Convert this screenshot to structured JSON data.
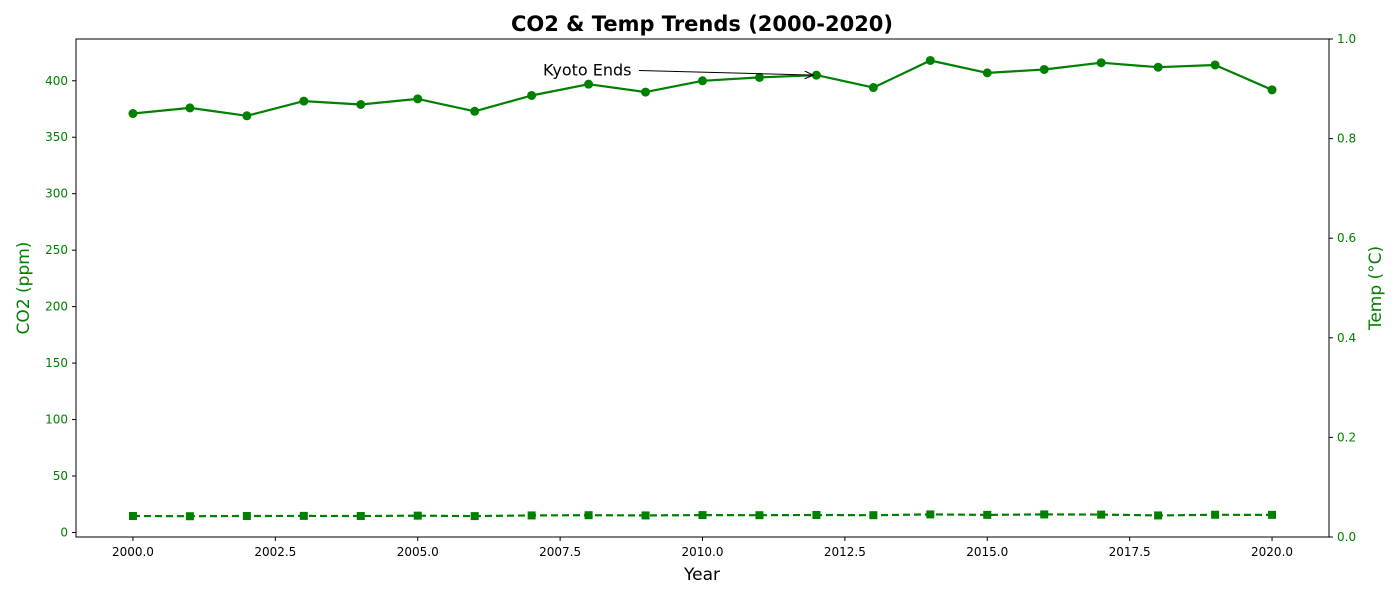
{
  "chart_data": {
    "type": "line",
    "title": "CO2 & Temp Trends (2000-2020)",
    "xlabel": "Year",
    "ylabel": "CO2 (ppm)",
    "y2label": "Temp (°C)",
    "xlim": [
      1999,
      2021
    ],
    "ylim": [
      -4,
      437
    ],
    "y2lim": [
      0,
      1
    ],
    "x_ticks": [
      2000.0,
      2002.5,
      2005.0,
      2007.5,
      2010.0,
      2012.5,
      2015.0,
      2017.5,
      2020.0
    ],
    "x_tick_labels": [
      "2000.0",
      "2002.5",
      "2005.0",
      "2007.5",
      "2010.0",
      "2012.5",
      "2015.0",
      "2017.5",
      "2020.0"
    ],
    "y_ticks": [
      0,
      50,
      100,
      150,
      200,
      250,
      300,
      350,
      400
    ],
    "y_tick_labels": [
      "0",
      "50",
      "100",
      "150",
      "200",
      "250",
      "300",
      "350",
      "400"
    ],
    "y2_ticks": [
      0,
      0.2,
      0.4,
      0.6,
      0.8,
      1.0
    ],
    "y2_tick_labels": [
      "0.0",
      "0.2",
      "0.4",
      "0.6",
      "0.8",
      "1.0"
    ],
    "grid": false,
    "x": [
      2000,
      2001,
      2002,
      2003,
      2004,
      2005,
      2006,
      2007,
      2008,
      2009,
      2010,
      2011,
      2012,
      2013,
      2014,
      2015,
      2016,
      2017,
      2018,
      2019,
      2020
    ],
    "series": [
      {
        "axis": "left",
        "style": "solid",
        "marker": "circle",
        "color": "#008000",
        "values": [
          371,
          376,
          369,
          382,
          379,
          384,
          373,
          387,
          397,
          390,
          400,
          403,
          405,
          394,
          418,
          407,
          410,
          416,
          412,
          414,
          392
        ]
      },
      {
        "axis": "left",
        "style": "dashed",
        "marker": "square",
        "color": "#008000",
        "values": [
          14.6,
          14.4,
          14.6,
          14.7,
          14.6,
          14.9,
          14.5,
          15.1,
          15.3,
          15.1,
          15.4,
          15.3,
          15.5,
          15.3,
          16.0,
          15.6,
          16.0,
          15.8,
          15.1,
          15.7,
          15.6
        ]
      }
    ],
    "annotations": [
      {
        "text": "Kyoto Ends",
        "x": 2012,
        "y": 405,
        "text_x": 2007.2,
        "text_y": 410
      }
    ],
    "axis_color": "#008000"
  }
}
